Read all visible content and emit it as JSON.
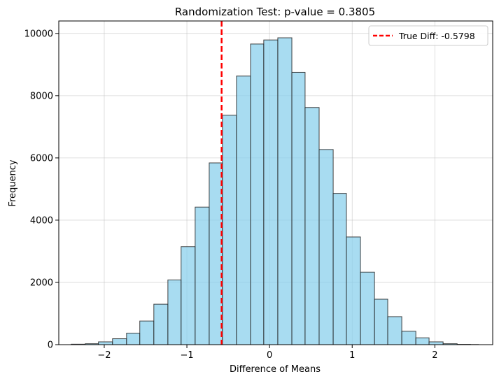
{
  "chart_data": {
    "type": "bar",
    "title": "Randomization Test: p-value = 0.3805",
    "xlabel": "Difference of Means",
    "ylabel": "Frequency",
    "xlim": [
      -2.55,
      2.7
    ],
    "ylim": [
      0,
      10400
    ],
    "xticks": [
      -2,
      -1,
      0,
      1,
      2
    ],
    "xtick_labels": [
      "−2",
      "−1",
      "0",
      "1",
      "2"
    ],
    "yticks": [
      0,
      2000,
      4000,
      6000,
      8000,
      10000
    ],
    "ytick_labels": [
      "0",
      "2000",
      "4000",
      "6000",
      "8000",
      "10000"
    ],
    "grid": true,
    "bin_edges": [
      -2.4,
      -2.23,
      -2.07,
      -1.9,
      -1.73,
      -1.57,
      -1.4,
      -1.23,
      -1.07,
      -0.9,
      -0.73,
      -0.57,
      -0.4,
      -0.23,
      -0.07,
      0.1,
      0.27,
      0.43,
      0.6,
      0.77,
      0.93,
      1.1,
      1.27,
      1.43,
      1.6,
      1.77,
      1.93,
      2.1,
      2.27,
      2.43,
      2.53
    ],
    "values": [
      15,
      30,
      90,
      190,
      370,
      760,
      1300,
      2080,
      3150,
      4420,
      5840,
      7370,
      8630,
      9660,
      9790,
      9860,
      8750,
      7620,
      6270,
      4860,
      3460,
      2330,
      1460,
      900,
      430,
      220,
      90,
      30,
      10,
      5
    ],
    "bar_color": "#87CEEB",
    "bar_edge_color": "#222222",
    "vline": {
      "x": -0.5798,
      "color": "#ff0000",
      "style": "dashed"
    },
    "legend": {
      "entries": [
        "True Diff: -0.5798"
      ],
      "position": "top-right"
    }
  }
}
